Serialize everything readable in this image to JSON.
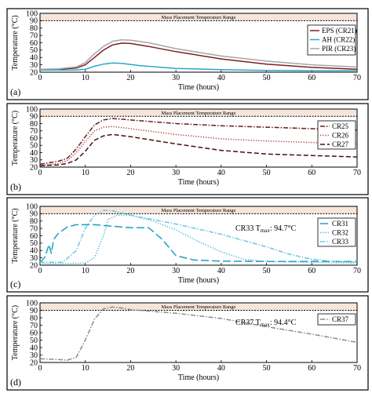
{
  "chart_data": [
    {
      "panel_label": "(a)",
      "type": "line",
      "band_label": "Mass Placement Temperature Range",
      "band_range": [
        90,
        100
      ],
      "threshold": 90,
      "xlabel": "Time (hours)",
      "ylabel": "Temperature (°C)",
      "xlim": [
        0,
        70
      ],
      "ylim": [
        20,
        100
      ],
      "xticks": [
        0,
        10,
        20,
        30,
        40,
        50,
        60,
        70
      ],
      "yticks": [
        20,
        30,
        40,
        50,
        60,
        70,
        80,
        90,
        100
      ],
      "legend_position": "right",
      "annotation": null,
      "series": [
        {
          "name": "EPS (CR21)",
          "color": "#7a1f24",
          "dash": "solid",
          "points": [
            [
              0,
              24
            ],
            [
              4,
              24
            ],
            [
              8,
              25.5
            ],
            [
              10,
              30
            ],
            [
              12,
              40
            ],
            [
              14,
              50
            ],
            [
              16,
              57
            ],
            [
              18,
              59.5
            ],
            [
              20,
              59
            ],
            [
              24,
              55
            ],
            [
              30,
              48
            ],
            [
              40,
              38
            ],
            [
              50,
              31
            ],
            [
              60,
              26.5
            ],
            [
              70,
              24
            ]
          ]
        },
        {
          "name": "AH (CR22)",
          "color": "#2aa7c9",
          "dash": "solid",
          "points": [
            [
              0,
              23
            ],
            [
              8,
              23
            ],
            [
              10,
              24
            ],
            [
              12,
              28
            ],
            [
              14,
              31
            ],
            [
              16,
              32.5
            ],
            [
              18,
              32
            ],
            [
              22,
              29
            ],
            [
              30,
              25
            ],
            [
              40,
              23.5
            ],
            [
              50,
              22.5
            ],
            [
              60,
              22
            ],
            [
              70,
              22
            ]
          ]
        },
        {
          "name": "PIR (CR23)",
          "color": "#a6a6a6",
          "dash": "solid",
          "points": [
            [
              0,
              24
            ],
            [
              4,
              24.5
            ],
            [
              8,
              27
            ],
            [
              10,
              33
            ],
            [
              12,
              45
            ],
            [
              14,
              55
            ],
            [
              16,
              62
            ],
            [
              18,
              64
            ],
            [
              20,
              63.5
            ],
            [
              24,
              60
            ],
            [
              30,
              52
            ],
            [
              40,
              42
            ],
            [
              50,
              35
            ],
            [
              60,
              30
            ],
            [
              70,
              27
            ]
          ]
        }
      ]
    },
    {
      "panel_label": "(b)",
      "type": "line",
      "band_label": "Mass Placement Temperature Range",
      "band_range": [
        90,
        100
      ],
      "threshold": 90,
      "xlabel": "Time (hours)",
      "ylabel": "Temperature (°C)",
      "xlim": [
        0,
        70
      ],
      "ylim": [
        20,
        100
      ],
      "xticks": [
        0,
        10,
        20,
        30,
        40,
        50,
        60,
        70
      ],
      "yticks": [
        20,
        30,
        40,
        50,
        60,
        70,
        80,
        90,
        100
      ],
      "legend_position": "right",
      "annotation": null,
      "series": [
        {
          "name": "CR25",
          "color": "#6b1a1f",
          "dash": "dashdot",
          "points": [
            [
              0,
              24
            ],
            [
              4,
              28
            ],
            [
              6,
              32
            ],
            [
              8,
              45
            ],
            [
              10,
              62
            ],
            [
              12,
              78
            ],
            [
              14,
              85
            ],
            [
              16,
              87
            ],
            [
              20,
              85
            ],
            [
              30,
              80
            ],
            [
              40,
              77
            ],
            [
              50,
              75
            ],
            [
              60,
              73
            ],
            [
              70,
              71
            ]
          ]
        },
        {
          "name": "CR26",
          "color": "#b03a3f",
          "dash": "dotted",
          "points": [
            [
              0,
              22
            ],
            [
              4,
              25
            ],
            [
              6,
              29
            ],
            [
              8,
              40
            ],
            [
              10,
              55
            ],
            [
              12,
              70
            ],
            [
              14,
              75
            ],
            [
              16,
              76
            ],
            [
              20,
              73
            ],
            [
              30,
              65
            ],
            [
              40,
              59
            ],
            [
              50,
              56
            ],
            [
              60,
              54
            ],
            [
              70,
              52
            ]
          ]
        },
        {
          "name": "CR27",
          "color": "#4a0f14",
          "dash": "dashed",
          "points": [
            [
              0,
              22
            ],
            [
              4,
              23
            ],
            [
              6,
              25
            ],
            [
              8,
              30
            ],
            [
              10,
              42
            ],
            [
              12,
              57
            ],
            [
              14,
              63
            ],
            [
              16,
              65
            ],
            [
              20,
              62
            ],
            [
              30,
              52
            ],
            [
              40,
              43
            ],
            [
              50,
              38
            ],
            [
              60,
              36
            ],
            [
              70,
              34
            ]
          ]
        }
      ]
    },
    {
      "panel_label": "(c)",
      "type": "line",
      "band_label": "Mass Placement Temperature Range",
      "band_range": [
        90,
        100
      ],
      "threshold": 90,
      "xlabel": "Time (hours)",
      "ylabel": "Temperature (°C)",
      "xlim": [
        0,
        70
      ],
      "ylim": [
        20,
        100
      ],
      "xticks": [
        0,
        10,
        20,
        30,
        40,
        50,
        60,
        70
      ],
      "yticks": [
        20,
        30,
        40,
        50,
        60,
        70,
        80,
        90,
        100
      ],
      "legend_position": "right",
      "annotation": "CR33 T",
      "annotation_sub": "max",
      "annotation_tail": ": 94.7°C",
      "series": [
        {
          "name": "CR31",
          "color": "#1b9fc4",
          "dash": "longdash",
          "points": [
            [
              0,
              24
            ],
            [
              1,
              30
            ],
            [
              2,
              48
            ],
            [
              2.5,
              36
            ],
            [
              3,
              55
            ],
            [
              4,
              63
            ],
            [
              6,
              72
            ],
            [
              8,
              75
            ],
            [
              12,
              75
            ],
            [
              16,
              73
            ],
            [
              20,
              71
            ],
            [
              24,
              71
            ],
            [
              27,
              55
            ],
            [
              30,
              33
            ],
            [
              34,
              27
            ],
            [
              40,
              25.5
            ],
            [
              50,
              25
            ],
            [
              60,
              25
            ],
            [
              70,
              25
            ]
          ]
        },
        {
          "name": "CR32",
          "color": "#3bb4d6",
          "dash": "dotted",
          "points": [
            [
              0,
              22
            ],
            [
              5,
              22
            ],
            [
              10,
              23
            ],
            [
              12,
              30
            ],
            [
              14,
              60
            ],
            [
              15,
              82
            ],
            [
              17,
              88
            ],
            [
              20,
              88
            ],
            [
              25,
              80
            ],
            [
              30,
              68
            ],
            [
              35,
              52
            ],
            [
              40,
              38
            ],
            [
              45,
              28
            ],
            [
              50,
              25
            ],
            [
              60,
              24
            ],
            [
              70,
              23
            ]
          ]
        },
        {
          "name": "CR33",
          "color": "#6fc6e0",
          "dash": "dashdot",
          "points": [
            [
              0,
              24
            ],
            [
              5,
              24
            ],
            [
              8,
              40
            ],
            [
              10,
              70
            ],
            [
              12,
              88
            ],
            [
              14,
              94.7
            ],
            [
              16,
              94
            ],
            [
              18,
              91
            ],
            [
              20,
              88
            ],
            [
              30,
              76
            ],
            [
              40,
              62
            ],
            [
              50,
              45
            ],
            [
              55,
              35
            ],
            [
              60,
              28
            ],
            [
              65,
              25
            ],
            [
              70,
              24
            ]
          ]
        }
      ]
    },
    {
      "panel_label": "(d)",
      "type": "line",
      "band_label": "Mass Placement Temperature Range",
      "band_range": [
        90,
        100
      ],
      "threshold": 90,
      "xlabel": "Time (hours)",
      "ylabel": "Temperature (°C)",
      "xlim": [
        0,
        70
      ],
      "ylim": [
        20,
        100
      ],
      "xticks": [
        0,
        10,
        20,
        30,
        40,
        50,
        60,
        70
      ],
      "yticks": [
        20,
        30,
        40,
        50,
        60,
        70,
        80,
        90,
        100
      ],
      "legend_position": "right",
      "annotation": "CR37 T",
      "annotation_sub": "max",
      "annotation_tail": ": 94.4°C",
      "series": [
        {
          "name": "CR37",
          "color": "#8c8c8c",
          "dash": "dashdot",
          "points": [
            [
              0,
              25
            ],
            [
              4,
              24
            ],
            [
              6,
              23
            ],
            [
              8,
              27
            ],
            [
              10,
              50
            ],
            [
              12,
              78
            ],
            [
              14,
              92
            ],
            [
              16,
              94.4
            ],
            [
              18,
              93
            ],
            [
              20,
              91
            ],
            [
              30,
              86
            ],
            [
              40,
              79
            ],
            [
              50,
              68
            ],
            [
              60,
              58
            ],
            [
              70,
              47
            ]
          ]
        }
      ]
    }
  ]
}
